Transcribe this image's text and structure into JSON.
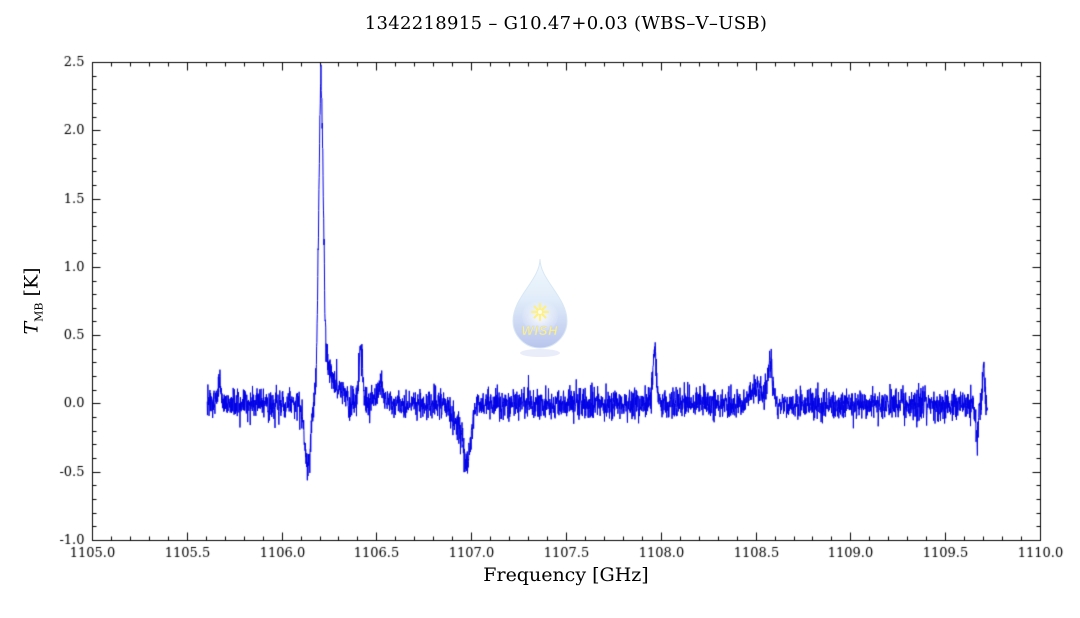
{
  "page": {
    "background": "#ffffff"
  },
  "watermark": {
    "text": "WISH",
    "star_color": "#ffe41a",
    "text_color": "#ffe41a",
    "drop_top_color": "#eaf6fd",
    "drop_bottom_color": "#8195df"
  },
  "chart_data": {
    "type": "line",
    "title": "1342218915 – G10.47+0.03 (WBS–V–USB)",
    "xlabel": "Frequency [GHz]",
    "ylabel": "T_MB [K]",
    "ylabel_parts": {
      "symbol": "T",
      "subscript": "MB",
      "unit": " [K]"
    },
    "xlim": [
      1105.0,
      1110.0
    ],
    "ylim": [
      -1.0,
      2.5
    ],
    "x_major_ticks": [
      1105.0,
      1105.5,
      1106.0,
      1106.5,
      1107.0,
      1107.5,
      1108.0,
      1108.5,
      1109.0,
      1109.5,
      1110.0
    ],
    "y_major_ticks": [
      -1.0,
      -0.5,
      0.0,
      0.5,
      1.0,
      1.5,
      2.0,
      2.5
    ],
    "x_minor_step": 0.1,
    "y_minor_step": 0.1,
    "tick_decimals": 1,
    "grid": false,
    "legend": false,
    "axis_color": "#000000",
    "line_color": "#0000e6",
    "series": [
      {
        "name": "WBS-V-USB spectrum",
        "x_start": 1105.605,
        "x_end": 1109.72,
        "channel_width": 0.0012,
        "baseline": 0.0,
        "noise_sigma": 0.055,
        "noise_seed": 20110915,
        "features": [
          {
            "center": 1105.67,
            "amplitude": 0.18,
            "sigma": 0.007
          },
          {
            "center": 1106.135,
            "amplitude": -0.44,
            "sigma": 0.016
          },
          {
            "center": 1106.205,
            "amplitude": 2.16,
            "sigma": 0.012
          },
          {
            "center": 1106.235,
            "amplitude": 0.28,
            "sigma": 0.032
          },
          {
            "center": 1106.315,
            "amplitude": 0.12,
            "sigma": 0.018
          },
          {
            "center": 1106.415,
            "amplitude": 0.4,
            "sigma": 0.01
          },
          {
            "center": 1106.52,
            "amplitude": 0.12,
            "sigma": 0.02
          },
          {
            "center": 1106.93,
            "amplitude": -0.14,
            "sigma": 0.04
          },
          {
            "center": 1106.975,
            "amplitude": -0.34,
            "sigma": 0.02
          },
          {
            "center": 1107.965,
            "amplitude": 0.36,
            "sigma": 0.01
          },
          {
            "center": 1108.5,
            "amplitude": 0.1,
            "sigma": 0.03
          },
          {
            "center": 1108.575,
            "amplitude": 0.3,
            "sigma": 0.013
          },
          {
            "center": 1109.665,
            "amplitude": -0.26,
            "sigma": 0.006
          },
          {
            "center": 1109.7,
            "amplitude": 0.3,
            "sigma": 0.005
          }
        ]
      }
    ]
  }
}
